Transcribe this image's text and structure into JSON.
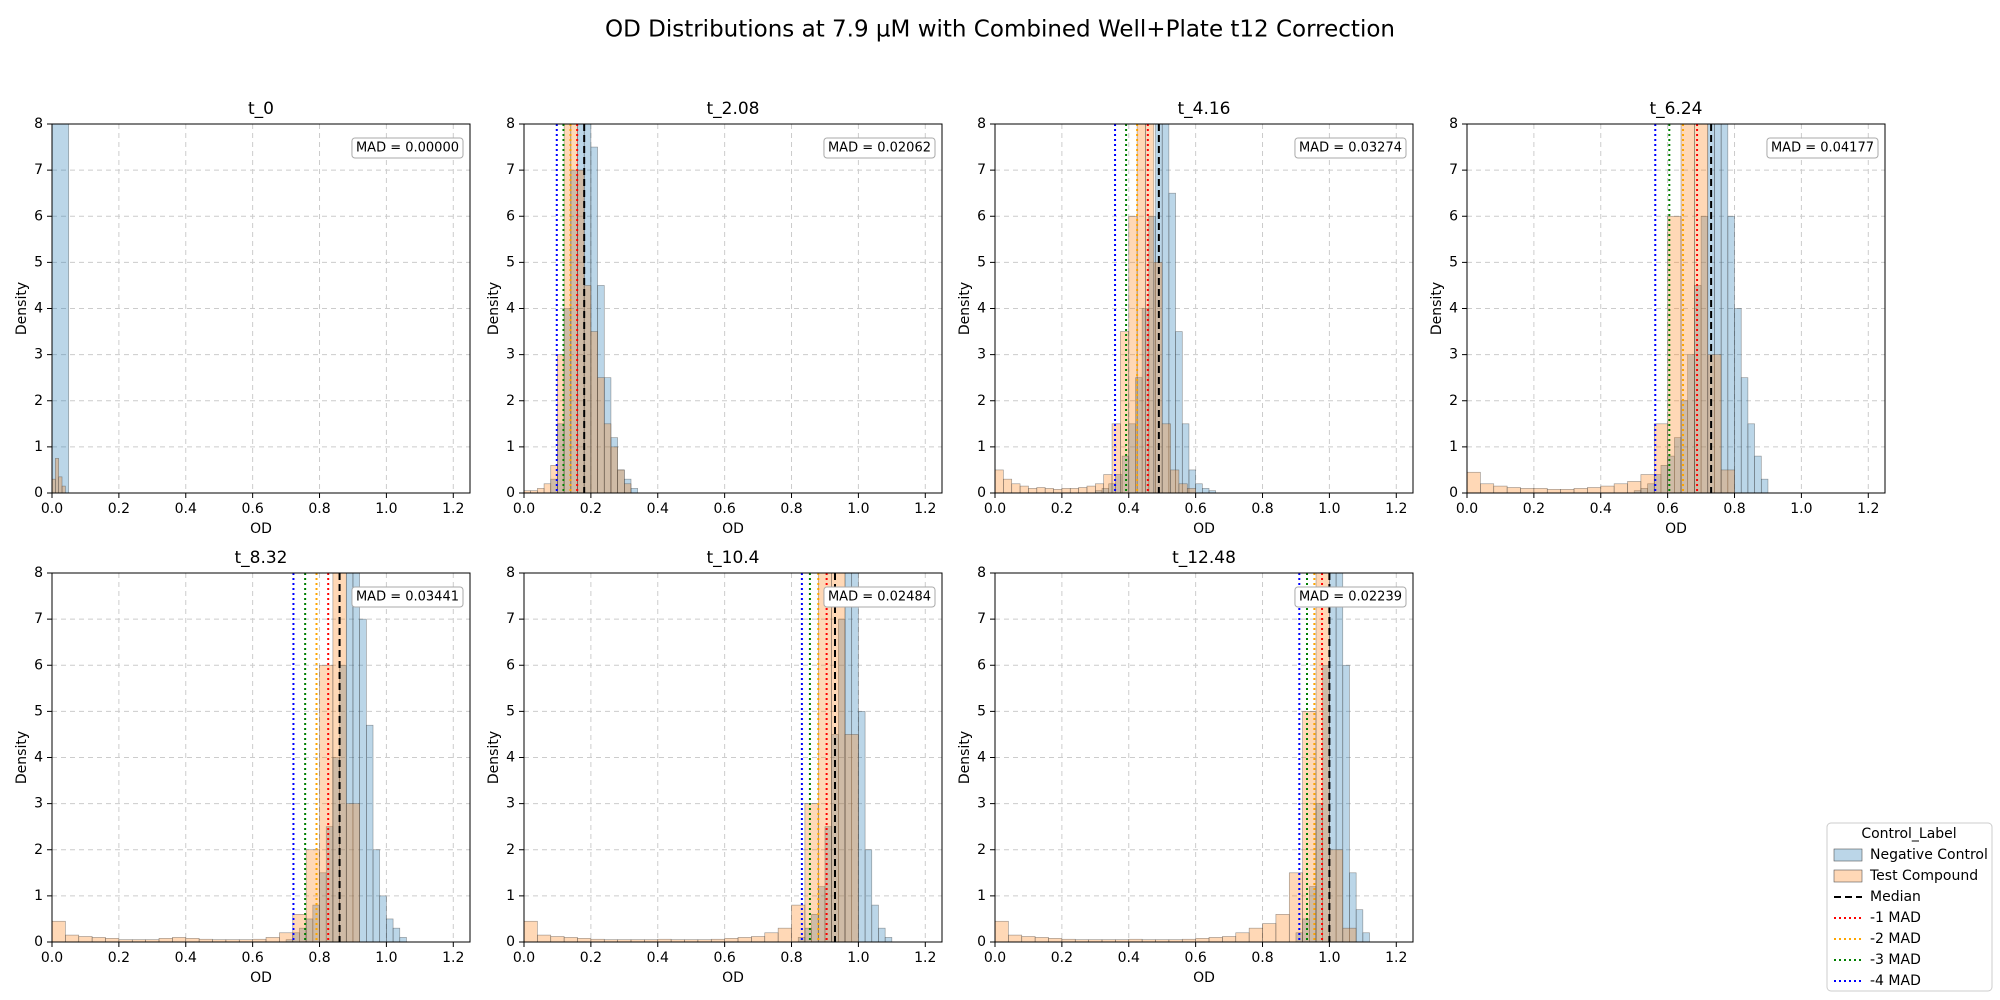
{
  "title": "OD Distributions at 7.9 µM with Combined Well+Plate t12 Correction",
  "legend": {
    "title": "Control_Label",
    "entries": [
      {
        "name": "Negative Control",
        "color": "#1f77b4",
        "style": "patch"
      },
      {
        "name": "Test Compound",
        "color": "#ff7f0e",
        "style": "patch"
      },
      {
        "name": "Median",
        "color": "#000000",
        "style": "dashed"
      },
      {
        "name": "-1 MAD",
        "color": "#ff0000",
        "style": "dotted"
      },
      {
        "name": "-2 MAD",
        "color": "#ffa500",
        "style": "dotted"
      },
      {
        "name": "-3 MAD",
        "color": "#008000",
        "style": "dotted"
      },
      {
        "name": "-4 MAD",
        "color": "#0000ff",
        "style": "dotted"
      }
    ]
  },
  "chart_data": [
    {
      "type": "histogram",
      "title": "t_0",
      "xlabel": "OD",
      "ylabel": "Density",
      "annotation": "MAD = 0.00000",
      "xlim": [
        0,
        1.25
      ],
      "ylim": [
        0,
        8
      ],
      "xticks": [
        {
          "value": 0,
          "label": "0.0"
        },
        {
          "value": 0.2,
          "label": "0.2"
        },
        {
          "value": 0.4,
          "label": "0.4"
        },
        {
          "value": 0.6,
          "label": "0.6"
        },
        {
          "value": 0.8,
          "label": "0.8"
        },
        {
          "value": 1.0,
          "label": "1.0"
        },
        {
          "value": 1.2,
          "label": "1.2"
        }
      ],
      "yticks": [
        0,
        1,
        2,
        3,
        4,
        5,
        6,
        7,
        8
      ],
      "grid": true,
      "histograms": [
        {
          "bins": [
            0,
            0.05
          ],
          "values": [
            20
          ]
        },
        {
          "bins": [
            0,
            0.01,
            0.02,
            0.03,
            0.04
          ],
          "values": [
            0.3,
            0.75,
            0.35,
            0.15
          ]
        }
      ]
    },
    {
      "type": "histogram",
      "title": "t_2.08",
      "xlabel": "OD",
      "ylabel": "Density",
      "annotation": "MAD = 0.02062",
      "xlim": [
        0,
        1.25
      ],
      "ylim": [
        0,
        8
      ],
      "xticks": [
        {
          "value": 0,
          "label": "0.0"
        },
        {
          "value": 0.2,
          "label": "0.2"
        },
        {
          "value": 0.4,
          "label": "0.4"
        },
        {
          "value": 0.6,
          "label": "0.6"
        },
        {
          "value": 0.8,
          "label": "0.8"
        },
        {
          "value": 1.0,
          "label": "1.0"
        },
        {
          "value": 1.2,
          "label": "1.2"
        }
      ],
      "yticks": [
        0,
        1,
        2,
        3,
        4,
        5,
        6,
        7,
        8
      ],
      "grid": true,
      "histograms": [
        {
          "bins": [
            0.08,
            0.1,
            0.12,
            0.14,
            0.16,
            0.18,
            0.2,
            0.22,
            0.24,
            0.26,
            0.28,
            0.3,
            0.32,
            0.34
          ],
          "values": [
            0.3,
            1.5,
            4,
            7,
            8.5,
            9,
            7.5,
            4.5,
            2.5,
            1.2,
            0.5,
            0.3,
            0.1
          ]
        },
        {
          "bins": [
            0,
            0.02,
            0.04,
            0.06,
            0.08,
            0.1,
            0.12,
            0.14,
            0.16,
            0.18,
            0.2,
            0.22,
            0.24,
            0.26,
            0.28,
            0.3,
            0.32
          ],
          "values": [
            0.05,
            0.05,
            0.1,
            0.2,
            0.6,
            3,
            8.5,
            9,
            7,
            4.5,
            3.5,
            2.5,
            1.5,
            1,
            0.5,
            0.2
          ]
        }
      ],
      "lines": [
        0.18,
        0.159,
        0.139,
        0.118,
        0.098
      ]
    },
    {
      "type": "histogram",
      "title": "t_4.16",
      "xlabel": "OD",
      "ylabel": "Density",
      "annotation": "MAD = 0.03274",
      "xlim": [
        0,
        1.25
      ],
      "ylim": [
        0,
        8
      ],
      "xticks": [
        {
          "value": 0,
          "label": "0.0"
        },
        {
          "value": 0.2,
          "label": "0.2"
        },
        {
          "value": 0.4,
          "label": "0.4"
        },
        {
          "value": 0.6,
          "label": "0.6"
        },
        {
          "value": 0.8,
          "label": "0.8"
        },
        {
          "value": 1.0,
          "label": "1.0"
        },
        {
          "value": 1.2,
          "label": "1.2"
        }
      ],
      "yticks": [
        0,
        1,
        2,
        3,
        4,
        5,
        6,
        7,
        8
      ],
      "grid": true,
      "histograms": [
        {
          "bins": [
            0.3,
            0.32,
            0.34,
            0.36,
            0.38,
            0.4,
            0.42,
            0.44,
            0.46,
            0.48,
            0.5,
            0.52,
            0.54,
            0.56,
            0.58,
            0.6,
            0.62,
            0.64,
            0.66
          ],
          "values": [
            0.05,
            0.1,
            0.2,
            0.4,
            0.8,
            1.5,
            2.5,
            4,
            6,
            8.5,
            9,
            6.5,
            3.5,
            1.5,
            0.5,
            0.2,
            0.1,
            0.05
          ]
        },
        {
          "bins": [
            0,
            0.025,
            0.05,
            0.075,
            0.1,
            0.125,
            0.15,
            0.175,
            0.2,
            0.225,
            0.25,
            0.275,
            0.3,
            0.325,
            0.35,
            0.375,
            0.4,
            0.425,
            0.45,
            0.475,
            0.5,
            0.525,
            0.55,
            0.575,
            0.6
          ],
          "values": [
            0.5,
            0.3,
            0.2,
            0.15,
            0.1,
            0.12,
            0.1,
            0.08,
            0.1,
            0.1,
            0.12,
            0.15,
            0.2,
            0.4,
            1.5,
            3.5,
            6,
            8.5,
            9,
            5,
            1.5,
            0.5,
            0.2,
            0.1
          ]
        }
      ],
      "lines": [
        0.49,
        0.457,
        0.425,
        0.392,
        0.359
      ]
    },
    {
      "type": "histogram",
      "title": "t_6.24",
      "xlabel": "OD",
      "ylabel": "Density",
      "annotation": "MAD = 0.04177",
      "xlim": [
        0,
        1.25
      ],
      "ylim": [
        0,
        8
      ],
      "xticks": [
        {
          "value": 0,
          "label": "0.0"
        },
        {
          "value": 0.2,
          "label": "0.2"
        },
        {
          "value": 0.4,
          "label": "0.4"
        },
        {
          "value": 0.6,
          "label": "0.6"
        },
        {
          "value": 0.8,
          "label": "0.8"
        },
        {
          "value": 1.0,
          "label": "1.0"
        },
        {
          "value": 1.2,
          "label": "1.2"
        }
      ],
      "yticks": [
        0,
        1,
        2,
        3,
        4,
        5,
        6,
        7,
        8
      ],
      "grid": true,
      "histograms": [
        {
          "bins": [
            0.5,
            0.52,
            0.54,
            0.56,
            0.58,
            0.6,
            0.62,
            0.64,
            0.66,
            0.68,
            0.7,
            0.72,
            0.74,
            0.76,
            0.78,
            0.8,
            0.82,
            0.84,
            0.86,
            0.88,
            0.9
          ],
          "values": [
            0.05,
            0.1,
            0.2,
            0.4,
            0.6,
            0.8,
            1.2,
            2,
            3,
            4.5,
            6,
            8.5,
            9,
            8,
            6,
            4,
            2.5,
            1.5,
            0.8,
            0.3
          ]
        },
        {
          "bins": [
            0,
            0.04,
            0.08,
            0.12,
            0.16,
            0.2,
            0.24,
            0.28,
            0.32,
            0.36,
            0.4,
            0.44,
            0.48,
            0.52,
            0.56,
            0.6,
            0.64,
            0.68,
            0.72,
            0.76,
            0.8
          ],
          "values": [
            0.45,
            0.2,
            0.15,
            0.12,
            0.1,
            0.1,
            0.08,
            0.08,
            0.1,
            0.12,
            0.15,
            0.2,
            0.25,
            0.4,
            1.5,
            6,
            9,
            9,
            3,
            0.5
          ]
        }
      ],
      "lines": [
        0.73,
        0.688,
        0.646,
        0.605,
        0.563
      ]
    },
    {
      "type": "histogram",
      "title": "t_8.32",
      "xlabel": "OD",
      "ylabel": "Density",
      "annotation": "MAD = 0.03441",
      "xlim": [
        0,
        1.25
      ],
      "ylim": [
        0,
        8
      ],
      "xticks": [
        {
          "value": 0,
          "label": "0.0"
        },
        {
          "value": 0.2,
          "label": "0.2"
        },
        {
          "value": 0.4,
          "label": "0.4"
        },
        {
          "value": 0.6,
          "label": "0.6"
        },
        {
          "value": 0.8,
          "label": "0.8"
        },
        {
          "value": 1.0,
          "label": "1.0"
        },
        {
          "value": 1.2,
          "label": "1.2"
        }
      ],
      "yticks": [
        0,
        1,
        2,
        3,
        4,
        5,
        6,
        7,
        8
      ],
      "grid": true,
      "histograms": [
        {
          "bins": [
            0.7,
            0.72,
            0.74,
            0.76,
            0.78,
            0.8,
            0.82,
            0.84,
            0.86,
            0.88,
            0.9,
            0.92,
            0.94,
            0.96,
            0.98,
            1.0,
            1.02,
            1.04,
            1.06
          ],
          "values": [
            0.05,
            0.2,
            0.3,
            0.5,
            0.8,
            1.5,
            2.5,
            4,
            6,
            8.5,
            9,
            7,
            4.7,
            2,
            1,
            0.5,
            0.3,
            0.1
          ]
        },
        {
          "bins": [
            0,
            0.04,
            0.08,
            0.12,
            0.16,
            0.2,
            0.24,
            0.28,
            0.32,
            0.36,
            0.4,
            0.44,
            0.48,
            0.52,
            0.56,
            0.6,
            0.64,
            0.68,
            0.72,
            0.76,
            0.8,
            0.84,
            0.88,
            0.92
          ],
          "values": [
            0.45,
            0.15,
            0.12,
            0.1,
            0.08,
            0.05,
            0.05,
            0.05,
            0.08,
            0.1,
            0.08,
            0.06,
            0.05,
            0.05,
            0.05,
            0.06,
            0.1,
            0.2,
            0.6,
            2,
            6,
            9,
            3
          ]
        }
      ],
      "lines": [
        0.86,
        0.826,
        0.791,
        0.757,
        0.722
      ]
    },
    {
      "type": "histogram",
      "title": "t_10.4",
      "xlabel": "OD",
      "ylabel": "Density",
      "annotation": "MAD = 0.02484",
      "xlim": [
        0,
        1.25
      ],
      "ylim": [
        0,
        8
      ],
      "xticks": [
        {
          "value": 0,
          "label": "0.0"
        },
        {
          "value": 0.2,
          "label": "0.2"
        },
        {
          "value": 0.4,
          "label": "0.4"
        },
        {
          "value": 0.6,
          "label": "0.6"
        },
        {
          "value": 0.8,
          "label": "0.8"
        },
        {
          "value": 1.0,
          "label": "1.0"
        },
        {
          "value": 1.2,
          "label": "1.2"
        }
      ],
      "yticks": [
        0,
        1,
        2,
        3,
        4,
        5,
        6,
        7,
        8
      ],
      "grid": true,
      "histograms": [
        {
          "bins": [
            0.82,
            0.84,
            0.86,
            0.88,
            0.9,
            0.92,
            0.94,
            0.96,
            0.98,
            1.0,
            1.02,
            1.04,
            1.06,
            1.08,
            1.1
          ],
          "values": [
            0.1,
            0.3,
            0.6,
            1.2,
            2.5,
            4.5,
            7,
            9,
            9,
            5,
            2,
            0.8,
            0.3,
            0.1
          ]
        },
        {
          "bins": [
            0,
            0.04,
            0.08,
            0.12,
            0.16,
            0.2,
            0.24,
            0.28,
            0.32,
            0.36,
            0.4,
            0.44,
            0.48,
            0.52,
            0.56,
            0.6,
            0.64,
            0.68,
            0.72,
            0.76,
            0.8,
            0.84,
            0.88,
            0.92,
            0.96,
            1.0
          ],
          "values": [
            0.45,
            0.15,
            0.12,
            0.1,
            0.08,
            0.06,
            0.05,
            0.05,
            0.05,
            0.05,
            0.06,
            0.05,
            0.05,
            0.05,
            0.06,
            0.08,
            0.1,
            0.12,
            0.2,
            0.3,
            0.8,
            3,
            8,
            9,
            4.5
          ]
        }
      ],
      "lines": [
        0.93,
        0.905,
        0.88,
        0.855,
        0.831
      ]
    },
    {
      "type": "histogram",
      "title": "t_12.48",
      "xlabel": "OD",
      "ylabel": "Density",
      "annotation": "MAD = 0.02239",
      "xlim": [
        0,
        1.25
      ],
      "ylim": [
        0,
        8
      ],
      "xticks": [
        {
          "value": 0,
          "label": "0.0"
        },
        {
          "value": 0.2,
          "label": "0.2"
        },
        {
          "value": 0.4,
          "label": "0.4"
        },
        {
          "value": 0.6,
          "label": "0.6"
        },
        {
          "value": 0.8,
          "label": "0.8"
        },
        {
          "value": 1.0,
          "label": "1.0"
        },
        {
          "value": 1.2,
          "label": "1.2"
        }
      ],
      "yticks": [
        0,
        1,
        2,
        3,
        4,
        5,
        6,
        7,
        8
      ],
      "grid": true,
      "histograms": [
        {
          "bins": [
            0.9,
            0.92,
            0.94,
            0.96,
            0.98,
            1.0,
            1.02,
            1.04,
            1.06,
            1.08,
            1.1,
            1.12
          ],
          "values": [
            0.2,
            0.5,
            1.2,
            3,
            6,
            9,
            9,
            6,
            1.5,
            0.7,
            0.2
          ]
        },
        {
          "bins": [
            0,
            0.04,
            0.08,
            0.12,
            0.16,
            0.2,
            0.24,
            0.28,
            0.32,
            0.36,
            0.4,
            0.44,
            0.48,
            0.52,
            0.56,
            0.6,
            0.64,
            0.68,
            0.72,
            0.76,
            0.8,
            0.84,
            0.88,
            0.92,
            0.96,
            1.0,
            1.04,
            1.08
          ],
          "values": [
            0.45,
            0.15,
            0.12,
            0.1,
            0.08,
            0.06,
            0.05,
            0.05,
            0.05,
            0.05,
            0.06,
            0.05,
            0.05,
            0.05,
            0.06,
            0.08,
            0.1,
            0.12,
            0.2,
            0.3,
            0.4,
            0.6,
            1.5,
            5,
            9,
            2,
            0.3
          ]
        }
      ],
      "lines": [
        1.0,
        0.978,
        0.955,
        0.933,
        0.91
      ]
    }
  ]
}
